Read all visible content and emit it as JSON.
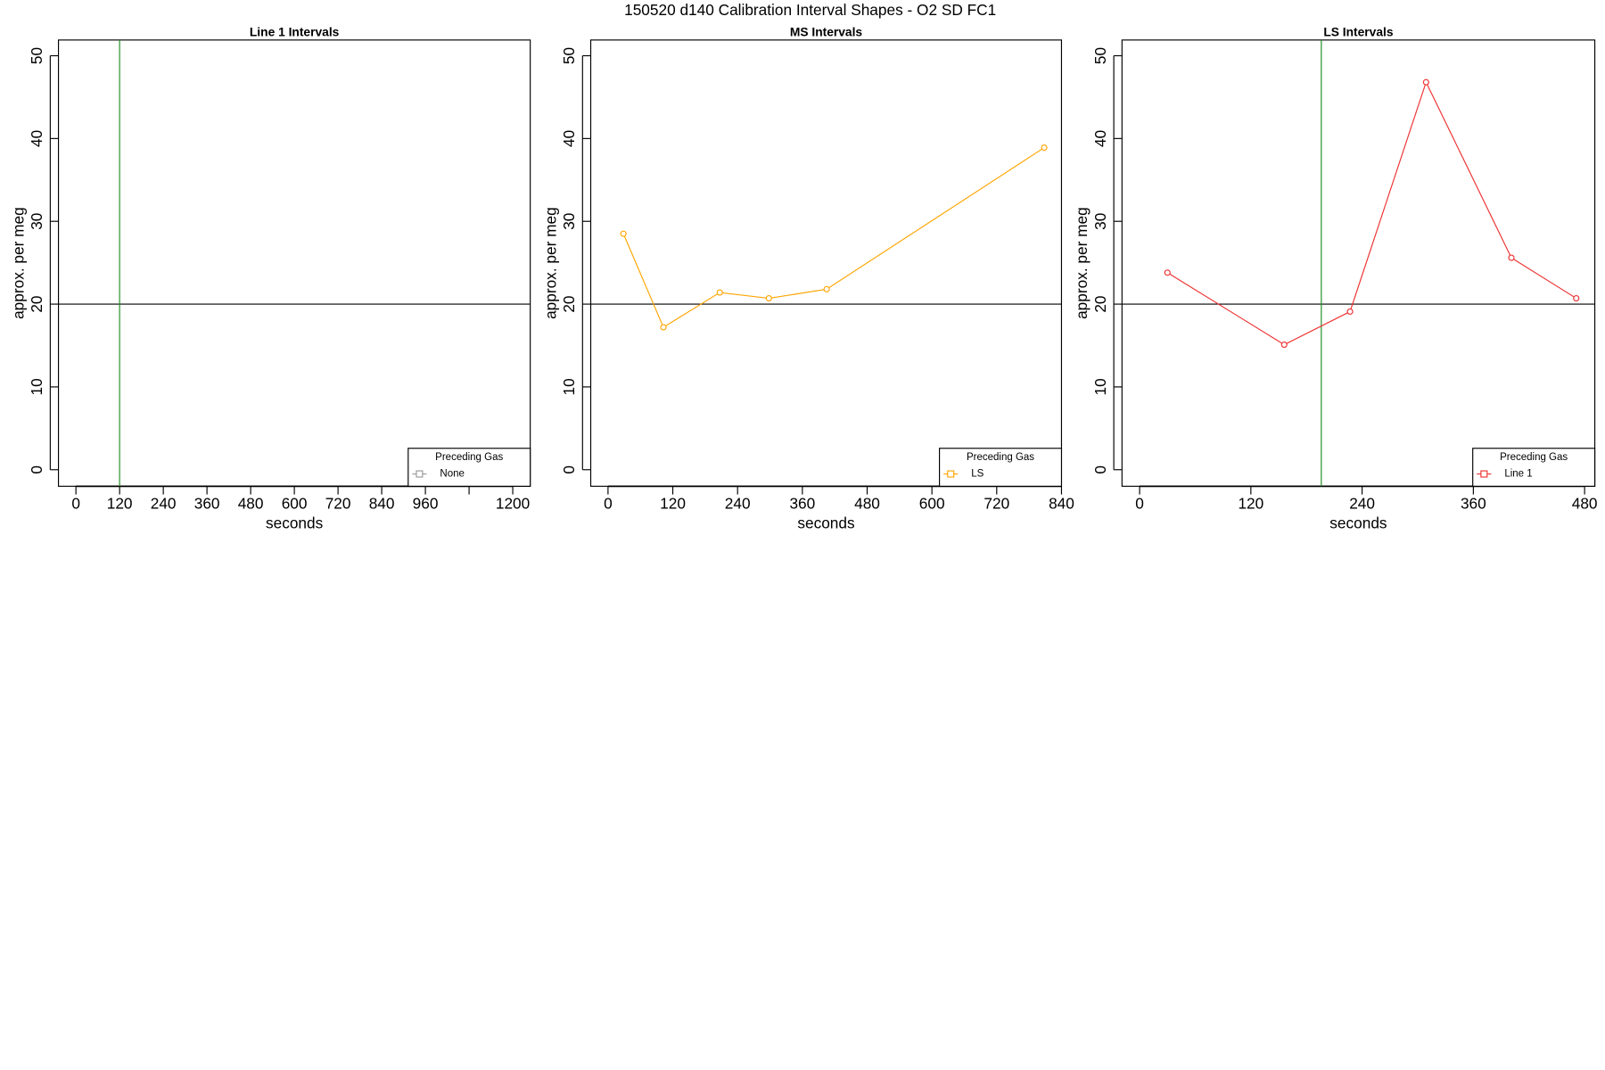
{
  "title": "150520   d140   Calibration Interval Shapes - O2 SD FC1",
  "chart_data": [
    {
      "type": "line",
      "title": "Line 1 Intervals",
      "xlabel": "seconds",
      "ylabel": "approx. per meg",
      "xlim": [
        -48,
        1248
      ],
      "ylim": [
        -2,
        51.9
      ],
      "xticks": [
        0,
        120,
        240,
        360,
        480,
        600,
        720,
        840,
        960,
        {
          "value": 1080,
          "label": null
        },
        1200
      ],
      "yticks": [
        0,
        10,
        20,
        30,
        40,
        50
      ],
      "hline": 20,
      "hline_color": "#000000",
      "vline": 120,
      "vline_color": "#228b22",
      "legend_title": "Preceding Gas",
      "legend": "bottomright",
      "series": [
        {
          "name": "None",
          "color": "#999999",
          "x": [],
          "values": []
        }
      ]
    },
    {
      "type": "line",
      "title": "MS Intervals",
      "xlabel": "seconds",
      "ylabel": "approx. per meg",
      "xlim": [
        -32,
        840
      ],
      "ylim": [
        -2,
        51.9
      ],
      "xticks": [
        0,
        120,
        240,
        360,
        480,
        600,
        720,
        840
      ],
      "yticks": [
        0,
        10,
        20,
        30,
        40,
        50
      ],
      "hline": 20,
      "hline_color": "#000000",
      "legend_title": "Preceding Gas",
      "legend": "bottomright",
      "series": [
        {
          "name": "LS",
          "color": "#ffa500",
          "x": [
            28.5,
            102.6,
            207,
            298,
            405,
            808
          ],
          "values": [
            28.5,
            17.2,
            21.4,
            20.7,
            21.8,
            38.9
          ]
        }
      ]
    },
    {
      "type": "line",
      "title": "LS Intervals",
      "xlabel": "seconds",
      "ylabel": "approx. per meg",
      "xlim": [
        -19,
        491
      ],
      "ylim": [
        -2,
        51.9
      ],
      "xticks": [
        0,
        120,
        240,
        360,
        480
      ],
      "yticks": [
        0,
        10,
        20,
        30,
        40,
        50
      ],
      "hline": 20,
      "hline_color": "#000000",
      "vline": 196,
      "vline_color": "#228b22",
      "legend_title": "Preceding Gas",
      "legend": "bottomright",
      "series": [
        {
          "name": "Line 1",
          "color": "#ee3030",
          "x": [
            30,
            156,
            227,
            309,
            401,
            471
          ],
          "values": [
            23.8,
            15.1,
            19.1,
            46.8,
            25.6,
            20.7
          ]
        }
      ]
    }
  ]
}
